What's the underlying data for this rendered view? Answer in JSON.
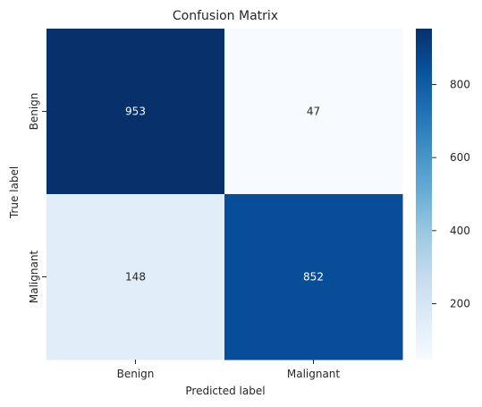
{
  "chart_data": {
    "type": "heatmap",
    "title": "Confusion Matrix",
    "xlabel": "Predicted label",
    "ylabel": "True label",
    "x_categories": [
      "Benign",
      "Malignant"
    ],
    "y_categories": [
      "Benign",
      "Malignant"
    ],
    "values": [
      [
        953,
        47
      ],
      [
        148,
        852
      ]
    ],
    "colormap": "Blues",
    "color_range": [
      47,
      953
    ],
    "colorbar_ticks": [
      200,
      400,
      600,
      800
    ]
  }
}
